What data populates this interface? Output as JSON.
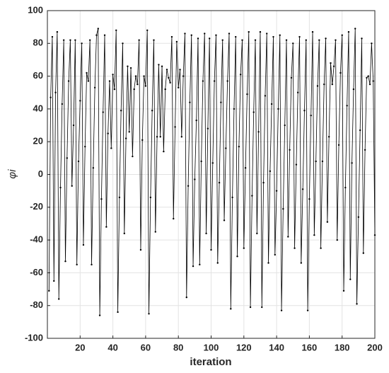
{
  "chart_data": {
    "type": "line",
    "xlabel": "iteration",
    "ylabel": "φi",
    "x": [
      1,
      2,
      3,
      4,
      5,
      6,
      7,
      8,
      9,
      10,
      11,
      12,
      13,
      14,
      15,
      16,
      17,
      18,
      19,
      20,
      21,
      22,
      23,
      24,
      25,
      26,
      27,
      28,
      29,
      30,
      31,
      32,
      33,
      34,
      35,
      36,
      37,
      38,
      39,
      40,
      41,
      42,
      43,
      44,
      45,
      46,
      47,
      48,
      49,
      50,
      51,
      52,
      53,
      54,
      55,
      56,
      57,
      58,
      59,
      60,
      61,
      62,
      63,
      64,
      65,
      66,
      67,
      68,
      69,
      70,
      71,
      72,
      73,
      74,
      75,
      76,
      77,
      78,
      79,
      80,
      81,
      82,
      83,
      84,
      85,
      86,
      87,
      88,
      89,
      90,
      91,
      92,
      93,
      94,
      95,
      96,
      97,
      98,
      99,
      100,
      101,
      102,
      103,
      104,
      105,
      106,
      107,
      108,
      109,
      110,
      111,
      112,
      113,
      114,
      115,
      116,
      117,
      118,
      119,
      120,
      121,
      122,
      123,
      124,
      125,
      126,
      127,
      128,
      129,
      130,
      131,
      132,
      133,
      134,
      135,
      136,
      137,
      138,
      139,
      140,
      141,
      142,
      143,
      144,
      145,
      146,
      147,
      148,
      149,
      150,
      151,
      152,
      153,
      154,
      155,
      156,
      157,
      158,
      159,
      160,
      161,
      162,
      163,
      164,
      165,
      166,
      167,
      168,
      169,
      170,
      171,
      172,
      173,
      174,
      175,
      176,
      177,
      178,
      179,
      180,
      181,
      182,
      183,
      184,
      185,
      186,
      187,
      188,
      189,
      190,
      191,
      192,
      193,
      194,
      195,
      196,
      197,
      198,
      199,
      200
    ],
    "series": [
      {
        "color": "#000000",
        "values": [
          -71,
          47,
          84,
          -65,
          50,
          87,
          -76,
          -8,
          43,
          82,
          -53,
          10,
          57,
          82,
          -7,
          30,
          82,
          -55,
          8,
          45,
          80,
          -43,
          17,
          62,
          57,
          82,
          -55,
          4,
          53,
          85,
          89,
          -86,
          -15,
          38,
          85,
          -32,
          25,
          57,
          16,
          61,
          52,
          88,
          -84,
          -14,
          39,
          80,
          -36,
          22,
          66,
          26,
          65,
          11,
          52,
          60,
          55,
          82,
          -46,
          21,
          60,
          54,
          88,
          -85,
          -14,
          39,
          82,
          -35,
          23,
          67,
          23,
          66,
          14,
          52,
          64,
          59,
          56,
          84,
          -27,
          29,
          81,
          53,
          64,
          23,
          60,
          86,
          -75,
          -7,
          44,
          85,
          -56,
          -3,
          33,
          83,
          -55,
          8,
          57,
          86,
          -36,
          28,
          83,
          -46,
          7,
          57,
          85,
          -54,
          -5,
          44,
          82,
          -28,
          16,
          57,
          86,
          -82,
          -14,
          40,
          84,
          -50,
          17,
          61,
          82,
          -45,
          4,
          49,
          87,
          -81,
          -13,
          38,
          82,
          -36,
          26,
          87,
          -81,
          -5,
          48,
          86,
          -54,
          2,
          43,
          84,
          -49,
          -10,
          40,
          85,
          -83,
          -21,
          30,
          82,
          -38,
          15,
          59,
          80,
          -45,
          6,
          50,
          84,
          -54,
          -9,
          39,
          82,
          -83,
          -15,
          36,
          87,
          -37,
          8,
          54,
          82,
          -45,
          8,
          55,
          83,
          -29,
          23,
          68,
          55,
          66,
          82,
          -40,
          18,
          62,
          85,
          -71,
          -8,
          42,
          87,
          -64,
          7,
          52,
          89,
          -79,
          -26,
          27,
          83,
          -48,
          15,
          59,
          60,
          55,
          80,
          57,
          -37
        ]
      }
    ],
    "xlim": [
      0,
      200
    ],
    "xticks": [
      20,
      40,
      60,
      80,
      100,
      120,
      140,
      160,
      180,
      200
    ],
    "ylim": [
      -100,
      100
    ],
    "yticks": [
      -100,
      -80,
      -60,
      -40,
      -20,
      0,
      20,
      40,
      60,
      80,
      100
    ],
    "grid": true
  }
}
